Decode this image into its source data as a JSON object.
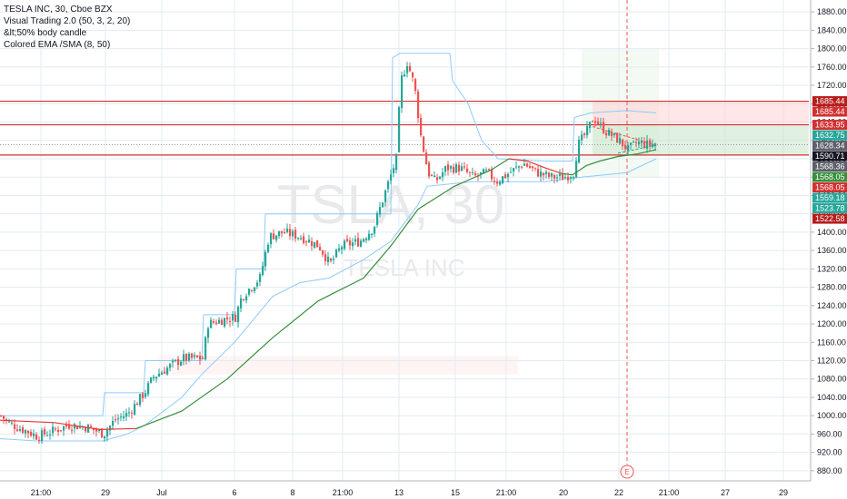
{
  "legend": {
    "title": "TESLA INC, 30, Cboe BZX",
    "indicator1": "Visual Trading 2.0 (50, 3, 2, 20)",
    "indicator2": "&lt;50% body candle",
    "indicator3": "Colored EMA /SMA (8, 50)"
  },
  "watermark": {
    "symbol": "TSLA, 30",
    "name": "TESLA INC"
  },
  "earnings_marker": "E",
  "colors": {
    "up": "#26a69a",
    "down": "#ef5350",
    "grid": "#e1ecf2",
    "hline": "#d32f2f",
    "ema_green": "#388e3c",
    "ema_red": "#e53935",
    "channel": "#90caf9",
    "price_dotted": "#9598a1"
  },
  "chart_data": {
    "type": "candlestick",
    "symbol": "TSLA",
    "timeframe": "30",
    "exchange": "Cboe BZX",
    "x_ticks": [
      "21:00",
      "29",
      "Jul",
      "6",
      "8",
      "21:00",
      "13",
      "15",
      "21:00",
      "20",
      "22",
      "21:00",
      "27",
      "29"
    ],
    "y_ticks": [
      880,
      920,
      960,
      1000,
      1040,
      1080,
      1120,
      1160,
      1200,
      1240,
      1280,
      1320,
      1360,
      1400,
      1440,
      1480,
      1520,
      1560,
      1600,
      1640,
      1680,
      1720,
      1760,
      1800,
      1840,
      1880
    ],
    "y_tick_labels": [
      "880.00",
      "920.00",
      "960.00",
      "1000.00",
      "1040.00",
      "1080.00",
      "1120.00",
      "1160.00",
      "1200.00",
      "1240.00",
      "1280.00",
      "1320.00",
      "1360.00",
      "1400.00",
      "1440.00",
      "1480.00",
      "1520.00",
      "1560.00",
      "1600.00",
      "1640.00",
      "1680.00",
      "1720.00",
      "1760.00",
      "1800.00",
      "1840.00",
      "1880.00"
    ],
    "ylim": [
      858,
      1906
    ],
    "horizontal_levels": [
      1685.44,
      1633.95,
      1568.05
    ],
    "current_price": 1590.71,
    "price_badges": [
      {
        "value": 1685.44,
        "label": "1685.44",
        "color": "#b71c1c"
      },
      {
        "value": 1685.44,
        "label": "1685.44",
        "color": "#d32f2f"
      },
      {
        "value": 1633.95,
        "label": "1633.95",
        "color": "#d32f2f"
      },
      {
        "value": 1632.75,
        "label": "1632.75",
        "color": "#26a69a"
      },
      {
        "value": 1628.34,
        "label": "1628.34",
        "color": "#5d606b"
      },
      {
        "value": 1590.71,
        "label": "1590.71",
        "color": "#131722"
      },
      {
        "value": 1568.36,
        "label": "1568.36",
        "color": "#5d606b"
      },
      {
        "value": 1568.05,
        "label": "1568.05",
        "color": "#388e3c"
      },
      {
        "value": 1568.05,
        "label": "1568.05",
        "color": "#d32f2f"
      },
      {
        "value": 1559.18,
        "label": "1559.18",
        "color": "#26a69a"
      },
      {
        "value": 1523.78,
        "label": "1523.78",
        "color": "#26a69a"
      },
      {
        "value": 1522.58,
        "label": "1522.58",
        "color": "#b71c1c"
      }
    ],
    "candle_path": [
      [
        0,
        1000
      ],
      [
        8,
        985
      ],
      [
        18,
        975
      ],
      [
        30,
        965
      ],
      [
        40,
        955
      ],
      [
        55,
        965
      ],
      [
        75,
        980
      ],
      [
        95,
        975
      ],
      [
        113,
        960
      ],
      [
        125,
        990
      ],
      [
        140,
        1005
      ],
      [
        158,
        1050
      ],
      [
        168,
        1085
      ],
      [
        180,
        1100
      ],
      [
        200,
        1125
      ],
      [
        222,
        1125
      ],
      [
        228,
        1200
      ],
      [
        245,
        1210
      ],
      [
        258,
        1215
      ],
      [
        265,
        1260
      ],
      [
        285,
        1300
      ],
      [
        295,
        1390
      ],
      [
        310,
        1400
      ],
      [
        330,
        1390
      ],
      [
        350,
        1370
      ],
      [
        362,
        1330
      ],
      [
        375,
        1370
      ],
      [
        395,
        1380
      ],
      [
        410,
        1410
      ],
      [
        425,
        1500
      ],
      [
        435,
        1560
      ],
      [
        440,
        1730
      ],
      [
        447,
        1770
      ],
      [
        455,
        1720
      ],
      [
        462,
        1610
      ],
      [
        470,
        1530
      ],
      [
        478,
        1510
      ],
      [
        490,
        1540
      ],
      [
        505,
        1540
      ],
      [
        520,
        1520
      ],
      [
        535,
        1530
      ],
      [
        545,
        1510
      ],
      [
        560,
        1530
      ],
      [
        575,
        1550
      ],
      [
        590,
        1530
      ],
      [
        605,
        1520
      ],
      [
        620,
        1520
      ],
      [
        630,
        1530
      ],
      [
        635,
        1590
      ],
      [
        645,
        1620
      ],
      [
        652,
        1650
      ],
      [
        665,
        1620
      ],
      [
        680,
        1600
      ],
      [
        690,
        1580
      ],
      [
        700,
        1595
      ],
      [
        715,
        1590
      ],
      [
        722,
        1595
      ]
    ],
    "ema_series": {
      "red_segments": [
        [
          [
            0,
            990
          ],
          [
            60,
            985
          ],
          [
            110,
            970
          ],
          [
            150,
            972
          ]
        ],
        [
          [
            560,
            1560
          ],
          [
            580,
            1555
          ],
          [
            600,
            1540
          ],
          [
            618,
            1528
          ]
        ]
      ],
      "green_segments": [
        [
          [
            150,
            972
          ],
          [
            200,
            1010
          ],
          [
            250,
            1080
          ],
          [
            300,
            1170
          ],
          [
            350,
            1250
          ],
          [
            400,
            1300
          ],
          [
            430,
            1370
          ],
          [
            460,
            1450
          ],
          [
            500,
            1500
          ],
          [
            540,
            1535
          ],
          [
            560,
            1560
          ]
        ],
        [
          [
            618,
            1528
          ],
          [
            630,
            1525
          ],
          [
            645,
            1545
          ],
          [
            660,
            1555
          ],
          [
            680,
            1565
          ],
          [
            700,
            1570
          ],
          [
            722,
            1580
          ]
        ]
      ]
    },
    "channel_lines": {
      "upper": [
        [
          0,
          1000
        ],
        [
          113,
          1000
        ],
        [
          115,
          1050
        ],
        [
          158,
          1050
        ],
        [
          160,
          1120
        ],
        [
          222,
          1120
        ],
        [
          224,
          1220
        ],
        [
          258,
          1220
        ],
        [
          260,
          1320
        ],
        [
          290,
          1320
        ],
        [
          292,
          1440
        ],
        [
          362,
          1440
        ],
        [
          364,
          1440
        ],
        [
          430,
          1440
        ],
        [
          432,
          1780
        ],
        [
          440,
          1790
        ],
        [
          470,
          1790
        ],
        [
          495,
          1790
        ],
        [
          498,
          1730
        ],
        [
          515,
          1680
        ],
        [
          530,
          1600
        ],
        [
          548,
          1560
        ],
        [
          600,
          1555
        ],
        [
          630,
          1555
        ],
        [
          632,
          1650
        ],
        [
          650,
          1660
        ],
        [
          690,
          1665
        ],
        [
          722,
          1660
        ]
      ],
      "lower": [
        [
          0,
          950
        ],
        [
          40,
          945
        ],
        [
          113,
          945
        ],
        [
          140,
          960
        ],
        [
          160,
          980
        ],
        [
          200,
          1040
        ],
        [
          222,
          1090
        ],
        [
          258,
          1160
        ],
        [
          300,
          1260
        ],
        [
          330,
          1290
        ],
        [
          362,
          1300
        ],
        [
          400,
          1340
        ],
        [
          430,
          1380
        ],
        [
          460,
          1460
        ],
        [
          470,
          1500
        ],
        [
          520,
          1510
        ],
        [
          560,
          1510
        ],
        [
          600,
          1510
        ],
        [
          640,
          1520
        ],
        [
          690,
          1530
        ],
        [
          722,
          1560
        ]
      ]
    },
    "zones": {
      "red_box": {
        "from_index": 652,
        "to_index": 890,
        "price_top": 1685.44,
        "price_bottom": 1633.95
      },
      "green_box": {
        "from_index": 652,
        "to_index": 890,
        "price_top": 1633.95,
        "price_bottom": 1568.05
      },
      "faint_green_box": {
        "from_index": 640,
        "to_index": 725,
        "price_top": 1800,
        "price_bottom": 1520
      },
      "faint_red_box": {
        "from_index": 175,
        "to_index": 570,
        "price_top": 1130,
        "price_bottom": 1090
      }
    },
    "earnings_time_index": 690
  }
}
